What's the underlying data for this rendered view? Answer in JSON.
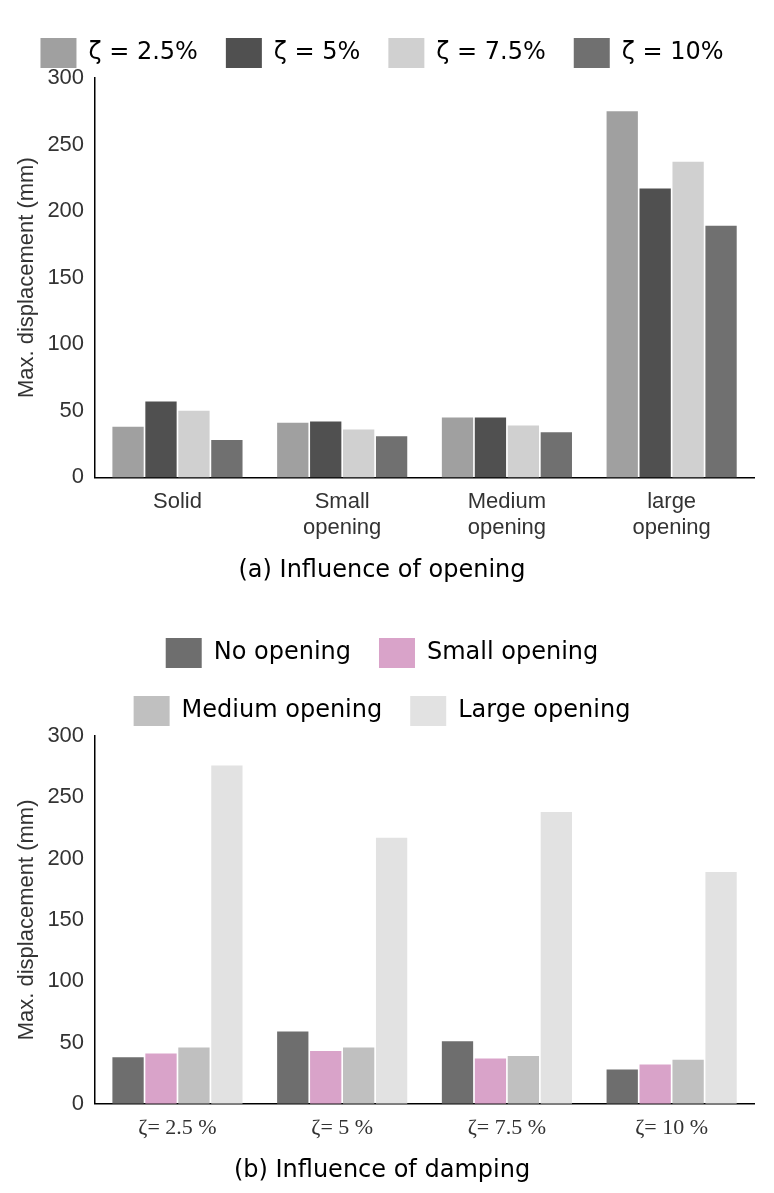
{
  "chart_data": [
    {
      "type": "bar",
      "title": "(a) Influence of opening",
      "ylabel": "Max. displacement (mm)",
      "categories": [
        "Solid",
        "Small opening",
        "Medium opening",
        "large opening"
      ],
      "series": [
        {
          "name": "ζ = 2.5%",
          "color": "#a0a0a0",
          "values": [
            38,
            41,
            45,
            275
          ]
        },
        {
          "name": "ζ = 5%",
          "color": "#505050",
          "values": [
            57,
            42,
            45,
            217
          ]
        },
        {
          "name": "ζ = 7.5%",
          "color": "#d0d0d0",
          "values": [
            50,
            36,
            39,
            237
          ]
        },
        {
          "name": "ζ = 10%",
          "color": "#707070",
          "values": [
            28,
            31,
            34,
            189
          ]
        }
      ],
      "ylim": [
        0,
        300
      ],
      "yticks": [
        0,
        50,
        100,
        150,
        200,
        250,
        300
      ],
      "grid": false,
      "legend": "top"
    },
    {
      "type": "bar",
      "title": "(b) Influence of damping",
      "ylabel": "Max. displacement (mm)",
      "categories": [
        "ζ= 2.5 %",
        "ζ= 5 %",
        "ζ= 7.5 %",
        "ζ= 10 %"
      ],
      "series": [
        {
          "name": "No opening",
          "color": "#6e6e6e",
          "values": [
            38,
            59,
            51,
            28
          ]
        },
        {
          "name": "Small opening",
          "color": "#d9a3c9",
          "values": [
            41,
            43,
            37,
            32
          ]
        },
        {
          "name": "Medium opening",
          "color": "#c0c0c0",
          "values": [
            46,
            46,
            39,
            36
          ]
        },
        {
          "name": "Large opening",
          "color": "#e2e2e2",
          "values": [
            276,
            217,
            238,
            189
          ]
        }
      ],
      "ylim": [
        0,
        300
      ],
      "yticks": [
        0,
        50,
        100,
        150,
        200,
        250,
        300
      ],
      "grid": false,
      "legend": "top"
    }
  ]
}
